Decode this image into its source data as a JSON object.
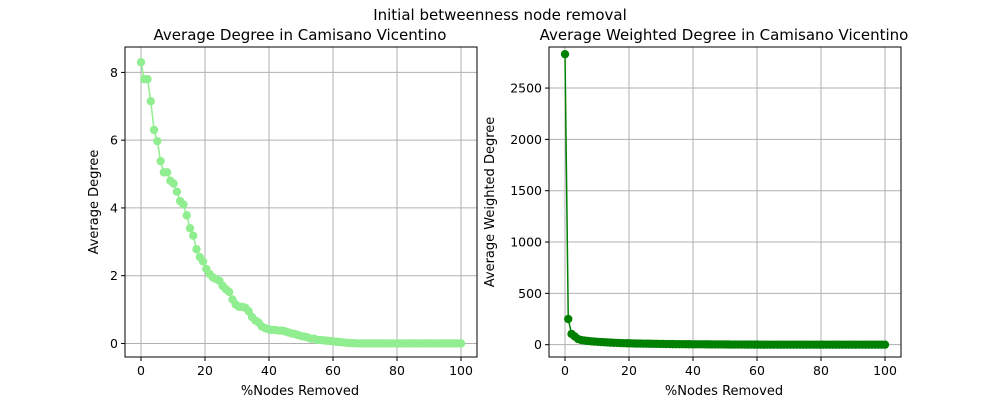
{
  "suptitle": "Initial betweenness node removal",
  "chart_data": [
    {
      "type": "line",
      "title": "Average Degree in Camisano Vicentino",
      "xlabel": "%Nodes Removed",
      "ylabel": "Average Degree",
      "xlim": [
        -5,
        105
      ],
      "ylim": [
        -0.4,
        8.75
      ],
      "xticks": [
        0,
        20,
        40,
        60,
        80,
        100
      ],
      "yticks": [
        0,
        2,
        4,
        6,
        8
      ],
      "xtick_labels": [
        "0",
        "20",
        "40",
        "60",
        "80",
        "100"
      ],
      "ytick_labels": [
        "0",
        "2",
        "4",
        "6",
        "8"
      ],
      "grid": true,
      "color": "#90ee90",
      "marker": "circle",
      "series": [
        {
          "x": [
            0,
            1.02,
            2.04,
            3.06,
            4.08,
            5.1,
            6.12,
            7.14,
            8.16,
            9.18,
            10.2,
            11.22,
            12.24,
            13.27,
            14.29,
            15.31,
            16.33,
            17.35,
            18.37,
            19.39,
            20.41,
            21.43,
            22.45,
            23.47,
            24.49,
            25.51,
            26.53,
            27.55,
            28.57,
            29.59,
            30.61,
            31.63,
            32.65,
            33.67,
            34.69,
            35.71,
            36.73,
            37.76,
            38.78,
            39.8,
            40.82,
            41.84,
            42.86,
            43.88,
            44.9,
            45.92,
            46.94,
            47.96,
            48.98,
            50,
            51.02,
            52.04,
            53.06,
            54.08,
            55.1,
            56.12,
            57.14,
            58.16,
            59.18,
            60.2,
            61.22,
            62.24,
            63.27,
            64.29,
            65.31,
            66.33,
            67.35,
            68.37,
            69.39,
            70.41,
            71.43,
            72.45,
            73.47,
            74.49,
            75.51,
            76.53,
            77.55,
            78.57,
            79.59,
            80.61,
            81.63,
            82.65,
            83.67,
            84.69,
            85.71,
            86.73,
            87.76,
            88.78,
            89.8,
            90.82,
            91.84,
            92.86,
            93.88,
            94.9,
            95.92,
            96.94,
            97.96,
            98.98,
            100
          ],
          "y": [
            8.3,
            7.8,
            7.8,
            7.15,
            6.3,
            5.97,
            5.38,
            5.05,
            5.05,
            4.8,
            4.72,
            4.48,
            4.2,
            4.1,
            3.78,
            3.4,
            3.18,
            2.78,
            2.55,
            2.42,
            2.2,
            2.05,
            1.95,
            1.9,
            1.85,
            1.7,
            1.6,
            1.52,
            1.3,
            1.15,
            1.08,
            1.08,
            1.05,
            0.95,
            0.78,
            0.68,
            0.62,
            0.5,
            0.45,
            0.42,
            0.4,
            0.4,
            0.38,
            0.38,
            0.36,
            0.33,
            0.3,
            0.28,
            0.25,
            0.22,
            0.2,
            0.18,
            0.14,
            0.14,
            0.1,
            0.1,
            0.09,
            0.08,
            0.07,
            0.06,
            0.05,
            0.04,
            0.03,
            0.02,
            0.01,
            0.01,
            0,
            0,
            0,
            0,
            0,
            0,
            0,
            0,
            0,
            0,
            0,
            0,
            0,
            0,
            0,
            0,
            0,
            0,
            0,
            0,
            0,
            0,
            0,
            0,
            0,
            0,
            0,
            0,
            0,
            0,
            0,
            0,
            0
          ]
        }
      ]
    },
    {
      "type": "line",
      "title": "Average Weighted Degree in Camisano Vicentino",
      "xlabel": "%Nodes Removed",
      "ylabel": "Average Weighted Degree",
      "xlim": [
        -5,
        105
      ],
      "ylim": [
        -120,
        2900
      ],
      "xticks": [
        0,
        20,
        40,
        60,
        80,
        100
      ],
      "yticks": [
        0,
        500,
        1000,
        1500,
        2000,
        2500
      ],
      "xtick_labels": [
        "0",
        "20",
        "40",
        "60",
        "80",
        "100"
      ],
      "ytick_labels": [
        "0",
        "500",
        "1000",
        "1500",
        "2000",
        "2500"
      ],
      "grid": true,
      "color": "#008000",
      "marker": "circle",
      "series": [
        {
          "x": [
            0,
            1.02,
            2.04,
            3.06,
            4.08,
            5.1,
            6.12,
            7.14,
            8.16,
            9.18,
            10.2,
            11.22,
            12.24,
            13.27,
            14.29,
            15.31,
            16.33,
            17.35,
            18.37,
            19.39,
            20.41,
            21.43,
            22.45,
            23.47,
            24.49,
            25.51,
            26.53,
            27.55,
            28.57,
            29.59,
            30.61,
            31.63,
            32.65,
            33.67,
            34.69,
            35.71,
            36.73,
            37.76,
            38.78,
            39.8,
            40.82,
            41.84,
            42.86,
            43.88,
            44.9,
            45.92,
            46.94,
            47.96,
            48.98,
            50,
            51.02,
            52.04,
            53.06,
            54.08,
            55.1,
            56.12,
            57.14,
            58.16,
            59.18,
            60.2,
            61.22,
            62.24,
            63.27,
            64.29,
            65.31,
            66.33,
            67.35,
            68.37,
            69.39,
            70.41,
            71.43,
            72.45,
            73.47,
            74.49,
            75.51,
            76.53,
            77.55,
            78.57,
            79.59,
            80.61,
            81.63,
            82.65,
            83.67,
            84.69,
            85.71,
            86.73,
            87.76,
            88.78,
            89.8,
            90.82,
            91.84,
            92.86,
            93.88,
            94.9,
            95.92,
            96.94,
            97.96,
            98.98,
            100
          ],
          "y": [
            2830,
            250,
            105,
            80,
            55,
            45,
            40,
            36,
            33,
            30,
            28,
            26,
            24,
            22,
            20,
            18,
            17,
            16,
            15,
            14,
            13,
            12,
            11,
            10.5,
            10,
            9.5,
            9,
            8.5,
            8,
            7.5,
            7,
            6.5,
            6,
            5.5,
            5,
            4.8,
            4.6,
            4.4,
            4.2,
            4,
            3.8,
            3.6,
            3.4,
            3.2,
            3,
            2.8,
            2.6,
            2.4,
            2.2,
            2,
            1.8,
            1.6,
            1.4,
            1.2,
            1,
            0.9,
            0.8,
            0.7,
            0.6,
            0.5,
            0.4,
            0.3,
            0.2,
            0.1,
            0,
            0,
            0,
            0,
            0,
            0,
            0,
            0,
            0,
            0,
            0,
            0,
            0,
            0,
            0,
            0,
            0,
            0,
            0,
            0,
            0,
            0,
            0,
            0,
            0,
            0,
            0,
            0,
            0,
            0,
            0,
            0,
            0,
            0,
            0
          ]
        }
      ]
    }
  ]
}
